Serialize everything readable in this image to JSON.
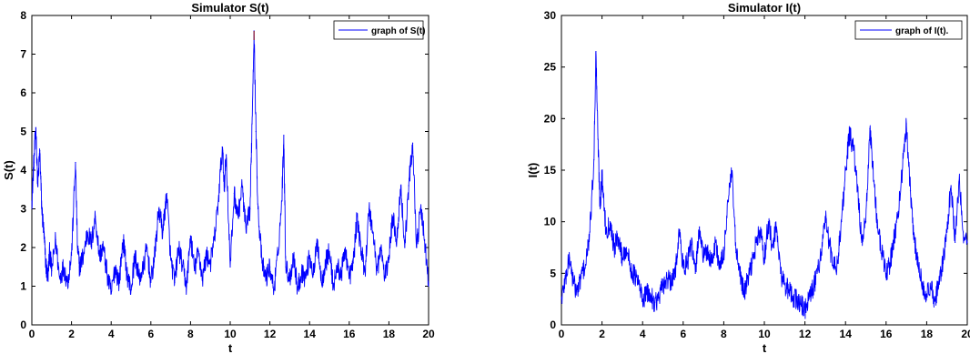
{
  "line_color": "#0000ff",
  "peak_color": "#8b0000",
  "chart_data": [
    {
      "type": "line",
      "title": "Simulator S(t)",
      "xlabel": "t",
      "ylabel": "S(t)",
      "xlim": [
        0,
        20
      ],
      "ylim": [
        0,
        8
      ],
      "xticks": [
        0,
        2,
        4,
        6,
        8,
        10,
        12,
        14,
        16,
        18,
        20
      ],
      "yticks": [
        0,
        1,
        2,
        3,
        4,
        5,
        6,
        7,
        8
      ],
      "grid": false,
      "legend_position": "top-right",
      "series": [
        {
          "name": "graph of S(t)",
          "x": [
            0,
            0.1,
            0.2,
            0.3,
            0.4,
            0.5,
            0.6,
            0.7,
            0.8,
            0.9,
            1.0,
            1.2,
            1.4,
            1.6,
            1.8,
            2.0,
            2.2,
            2.3,
            2.4,
            2.6,
            2.8,
            3.0,
            3.2,
            3.4,
            3.6,
            3.8,
            4.0,
            4.2,
            4.4,
            4.6,
            4.8,
            5.0,
            5.2,
            5.4,
            5.6,
            5.8,
            6.0,
            6.2,
            6.4,
            6.6,
            6.8,
            7.0,
            7.2,
            7.4,
            7.6,
            7.8,
            8.0,
            8.2,
            8.4,
            8.6,
            8.8,
            9.0,
            9.2,
            9.4,
            9.6,
            9.7,
            9.8,
            10.0,
            10.2,
            10.4,
            10.6,
            10.8,
            11.0,
            11.1,
            11.2,
            11.3,
            11.4,
            11.6,
            11.8,
            12.0,
            12.2,
            12.4,
            12.6,
            12.7,
            12.8,
            13.0,
            13.2,
            13.4,
            13.6,
            13.8,
            14.0,
            14.2,
            14.4,
            14.6,
            14.8,
            15.0,
            15.2,
            15.4,
            15.6,
            15.8,
            16.0,
            16.2,
            16.4,
            16.6,
            16.8,
            17.0,
            17.2,
            17.4,
            17.6,
            17.8,
            18.0,
            18.2,
            18.4,
            18.6,
            18.8,
            19.0,
            19.2,
            19.4,
            19.6,
            19.8,
            20.0
          ],
          "y": [
            3.2,
            4.2,
            5.1,
            3.6,
            4.5,
            3.0,
            2.4,
            1.6,
            1.2,
            1.9,
            1.4,
            2.2,
            1.2,
            1.5,
            1.1,
            1.8,
            4.2,
            2.0,
            1.5,
            1.8,
            2.4,
            2.1,
            2.8,
            1.8,
            2.0,
            1.3,
            0.8,
            1.5,
            1.1,
            2.2,
            1.3,
            0.9,
            1.8,
            1.2,
            1.4,
            2.0,
            1.1,
            1.8,
            3.0,
            2.4,
            3.4,
            1.7,
            1.1,
            2.0,
            1.5,
            1.0,
            2.3,
            1.4,
            1.9,
            1.2,
            1.8,
            1.6,
            2.2,
            3.2,
            4.6,
            3.6,
            4.4,
            1.5,
            3.4,
            2.8,
            3.6,
            2.4,
            3.0,
            5.2,
            7.6,
            5.0,
            3.0,
            1.6,
            1.2,
            1.5,
            0.9,
            1.8,
            3.2,
            4.9,
            1.5,
            1.2,
            1.8,
            0.9,
            1.4,
            1.2,
            1.8,
            1.3,
            2.2,
            1.1,
            1.6,
            1.9,
            1.0,
            1.5,
            1.3,
            2.0,
            1.2,
            1.6,
            2.8,
            1.9,
            1.4,
            3.0,
            2.4,
            1.4,
            2.0,
            1.2,
            1.8,
            2.8,
            2.2,
            3.6,
            2.0,
            3.6,
            4.7,
            2.0,
            3.0,
            2.2,
            1.0
          ]
        }
      ]
    },
    {
      "type": "line",
      "title": "Simulator  I(t)",
      "xlabel": "t",
      "ylabel": "I(t)",
      "xlim": [
        0,
        20
      ],
      "ylim": [
        0,
        30
      ],
      "xticks": [
        0,
        2,
        4,
        6,
        8,
        10,
        12,
        14,
        16,
        18,
        20
      ],
      "yticks": [
        0,
        5,
        10,
        15,
        20,
        25,
        30
      ],
      "grid": false,
      "legend_position": "top-right",
      "series": [
        {
          "name": "graph of I(t).",
          "x": [
            0,
            0.2,
            0.4,
            0.6,
            0.8,
            1.0,
            1.2,
            1.4,
            1.6,
            1.7,
            1.8,
            1.9,
            2.0,
            2.2,
            2.4,
            2.6,
            2.8,
            3.0,
            3.2,
            3.4,
            3.6,
            3.8,
            4.0,
            4.2,
            4.4,
            4.6,
            4.8,
            5.0,
            5.2,
            5.4,
            5.6,
            5.8,
            6.0,
            6.2,
            6.4,
            6.6,
            6.8,
            7.0,
            7.2,
            7.4,
            7.6,
            7.8,
            8.0,
            8.2,
            8.4,
            8.6,
            8.8,
            9.0,
            9.2,
            9.4,
            9.6,
            9.8,
            10.0,
            10.2,
            10.4,
            10.6,
            10.8,
            11.0,
            11.2,
            11.4,
            11.6,
            11.8,
            12.0,
            12.2,
            12.4,
            12.6,
            12.8,
            13.0,
            13.2,
            13.4,
            13.6,
            13.8,
            14.0,
            14.2,
            14.4,
            14.6,
            14.8,
            15.0,
            15.2,
            15.4,
            15.6,
            15.8,
            16.0,
            16.2,
            16.4,
            16.6,
            16.8,
            17.0,
            17.2,
            17.4,
            17.6,
            17.8,
            18.0,
            18.2,
            18.4,
            18.6,
            18.8,
            19.0,
            19.2,
            19.4,
            19.6,
            19.8,
            20.0
          ],
          "y": [
            2.5,
            4.5,
            6.5,
            4.0,
            3.2,
            5.0,
            5.8,
            9.0,
            16.0,
            26.5,
            18.0,
            11.5,
            14.5,
            9.0,
            10.0,
            7.5,
            8.5,
            6.5,
            7.5,
            5.5,
            4.8,
            4.0,
            2.5,
            3.0,
            2.8,
            2.2,
            2.6,
            3.8,
            4.5,
            4.0,
            5.0,
            9.2,
            5.5,
            6.0,
            7.8,
            5.0,
            9.5,
            6.5,
            7.2,
            6.0,
            8.0,
            5.5,
            6.8,
            12.0,
            14.8,
            7.0,
            5.0,
            3.0,
            4.5,
            6.0,
            8.0,
            9.0,
            6.5,
            10.0,
            7.5,
            9.5,
            5.0,
            4.0,
            3.2,
            2.8,
            2.4,
            2.0,
            1.5,
            2.5,
            3.5,
            5.0,
            7.0,
            10.5,
            8.0,
            5.5,
            6.0,
            10.0,
            15.0,
            18.5,
            17.0,
            13.0,
            8.0,
            10.0,
            19.0,
            14.0,
            9.0,
            7.0,
            5.0,
            6.0,
            8.5,
            11.0,
            15.0,
            19.5,
            13.0,
            8.0,
            5.5,
            4.0,
            3.0,
            3.5,
            2.5,
            4.0,
            6.0,
            9.0,
            13.5,
            8.0,
            14.0,
            9.0,
            8.0
          ]
        }
      ]
    }
  ]
}
